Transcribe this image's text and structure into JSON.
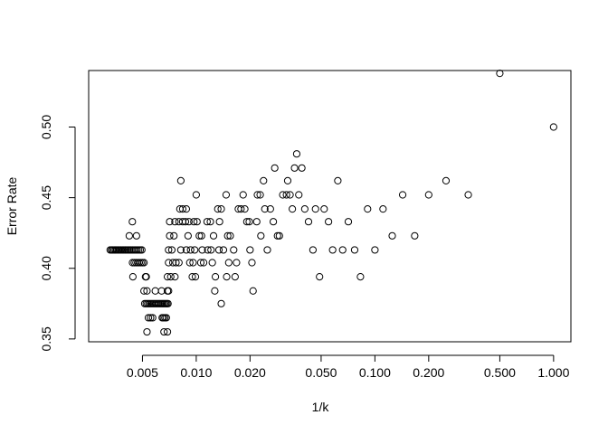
{
  "chart_data": {
    "type": "scatter",
    "title": "",
    "xlabel": "1/k",
    "ylabel": "Error Rate",
    "x_scale": "log",
    "xlim": [
      0.0025,
      1.25
    ],
    "ylim": [
      0.348,
      0.54
    ],
    "grid": false,
    "legend": "none",
    "marker": "open-circle",
    "colors": {
      "marker": "#000000",
      "axis": "#000000",
      "background": "#ffffff"
    },
    "x_ticks": [
      {
        "value": 0.005,
        "label": "0.005"
      },
      {
        "value": 0.01,
        "label": "0.010"
      },
      {
        "value": 0.02,
        "label": "0.020"
      },
      {
        "value": 0.05,
        "label": "0.050"
      },
      {
        "value": 0.1,
        "label": "0.100"
      },
      {
        "value": 0.2,
        "label": "0.200"
      },
      {
        "value": 0.5,
        "label": "0.500"
      },
      {
        "value": 1.0,
        "label": "1.000"
      }
    ],
    "y_ticks": [
      {
        "value": 0.35,
        "label": "0.35"
      },
      {
        "value": 0.4,
        "label": "0.40"
      },
      {
        "value": 0.45,
        "label": "0.45"
      },
      {
        "value": 0.5,
        "label": "0.50"
      }
    ],
    "points": [
      [
        0.0033,
        0.413
      ],
      [
        0.00336,
        0.413
      ],
      [
        0.00341,
        0.413
      ],
      [
        0.00347,
        0.413
      ],
      [
        0.00353,
        0.413
      ],
      [
        0.00359,
        0.413
      ],
      [
        0.00366,
        0.413
      ],
      [
        0.00372,
        0.413
      ],
      [
        0.00379,
        0.413
      ],
      [
        0.00386,
        0.413
      ],
      [
        0.00393,
        0.413
      ],
      [
        0.004,
        0.413
      ],
      [
        0.00407,
        0.413
      ],
      [
        0.00415,
        0.413
      ],
      [
        0.00423,
        0.413
      ],
      [
        0.00431,
        0.413
      ],
      [
        0.00439,
        0.413
      ],
      [
        0.00448,
        0.413
      ],
      [
        0.00457,
        0.413
      ],
      [
        0.00466,
        0.413
      ],
      [
        0.00476,
        0.413
      ],
      [
        0.00486,
        0.413
      ],
      [
        0.00496,
        0.413
      ],
      [
        0.00422,
        0.423
      ],
      [
        0.00439,
        0.433
      ],
      [
        0.00463,
        0.423
      ],
      [
        0.0044,
        0.404
      ],
      [
        0.0045,
        0.404
      ],
      [
        0.0046,
        0.404
      ],
      [
        0.0047,
        0.404
      ],
      [
        0.0048,
        0.404
      ],
      [
        0.0049,
        0.404
      ],
      [
        0.005,
        0.404
      ],
      [
        0.0051,
        0.404
      ],
      [
        0.00442,
        0.394
      ],
      [
        0.0052,
        0.394
      ],
      [
        0.00525,
        0.394
      ],
      [
        0.0051,
        0.384
      ],
      [
        0.0053,
        0.384
      ],
      [
        0.00515,
        0.375
      ],
      [
        0.00525,
        0.375
      ],
      [
        0.00535,
        0.375
      ],
      [
        0.00545,
        0.375
      ],
      [
        0.00555,
        0.375
      ],
      [
        0.00565,
        0.375
      ],
      [
        0.00575,
        0.375
      ],
      [
        0.00585,
        0.375
      ],
      [
        0.00595,
        0.375
      ],
      [
        0.00605,
        0.375
      ],
      [
        0.00615,
        0.375
      ],
      [
        0.00625,
        0.375
      ],
      [
        0.00635,
        0.375
      ],
      [
        0.00645,
        0.375
      ],
      [
        0.00655,
        0.375
      ],
      [
        0.00665,
        0.375
      ],
      [
        0.00675,
        0.375
      ],
      [
        0.00685,
        0.375
      ],
      [
        0.00695,
        0.375
      ],
      [
        0.0054,
        0.365
      ],
      [
        0.00555,
        0.365
      ],
      [
        0.0057,
        0.365
      ],
      [
        0.00645,
        0.365
      ],
      [
        0.00655,
        0.365
      ],
      [
        0.00668,
        0.365
      ],
      [
        0.0068,
        0.365
      ],
      [
        0.0053,
        0.355
      ],
      [
        0.0066,
        0.355
      ],
      [
        0.0069,
        0.355
      ],
      [
        0.0059,
        0.384
      ],
      [
        0.0064,
        0.384
      ],
      [
        0.0069,
        0.384
      ],
      [
        0.007,
        0.384
      ],
      [
        0.0069,
        0.394
      ],
      [
        0.0072,
        0.394
      ],
      [
        0.0076,
        0.394
      ],
      [
        0.007,
        0.404
      ],
      [
        0.0074,
        0.404
      ],
      [
        0.0077,
        0.404
      ],
      [
        0.008,
        0.404
      ],
      [
        0.007,
        0.413
      ],
      [
        0.0073,
        0.413
      ],
      [
        0.0082,
        0.413
      ],
      [
        0.0088,
        0.413
      ],
      [
        0.0093,
        0.413
      ],
      [
        0.0071,
        0.423
      ],
      [
        0.0075,
        0.423
      ],
      [
        0.0071,
        0.433
      ],
      [
        0.0076,
        0.433
      ],
      [
        0.008,
        0.433
      ],
      [
        0.0084,
        0.433
      ],
      [
        0.0087,
        0.433
      ],
      [
        0.0091,
        0.433
      ],
      [
        0.0081,
        0.442
      ],
      [
        0.0084,
        0.442
      ],
      [
        0.0088,
        0.442
      ],
      [
        0.0082,
        0.462
      ],
      [
        0.009,
        0.423
      ],
      [
        0.0092,
        0.404
      ],
      [
        0.0096,
        0.404
      ],
      [
        0.0095,
        0.394
      ],
      [
        0.0099,
        0.394
      ],
      [
        0.0098,
        0.413
      ],
      [
        0.0097,
        0.433
      ],
      [
        0.0101,
        0.433
      ],
      [
        0.01,
        0.452
      ],
      [
        0.0104,
        0.423
      ],
      [
        0.0107,
        0.423
      ],
      [
        0.0106,
        0.404
      ],
      [
        0.011,
        0.404
      ],
      [
        0.0108,
        0.413
      ],
      [
        0.0115,
        0.433
      ],
      [
        0.012,
        0.433
      ],
      [
        0.0116,
        0.413
      ],
      [
        0.0121,
        0.413
      ],
      [
        0.0125,
        0.423
      ],
      [
        0.0123,
        0.404
      ],
      [
        0.0127,
        0.384
      ],
      [
        0.0128,
        0.394
      ],
      [
        0.0132,
        0.442
      ],
      [
        0.0138,
        0.442
      ],
      [
        0.0135,
        0.433
      ],
      [
        0.0134,
        0.413
      ],
      [
        0.0142,
        0.413
      ],
      [
        0.0138,
        0.375
      ],
      [
        0.0147,
        0.452
      ],
      [
        0.015,
        0.423
      ],
      [
        0.0155,
        0.423
      ],
      [
        0.0152,
        0.404
      ],
      [
        0.0148,
        0.394
      ],
      [
        0.0162,
        0.413
      ],
      [
        0.0165,
        0.394
      ],
      [
        0.0168,
        0.404
      ],
      [
        0.0172,
        0.442
      ],
      [
        0.0178,
        0.442
      ],
      [
        0.0183,
        0.452
      ],
      [
        0.0187,
        0.442
      ],
      [
        0.0192,
        0.433
      ],
      [
        0.0198,
        0.433
      ],
      [
        0.02,
        0.413
      ],
      [
        0.0205,
        0.404
      ],
      [
        0.0208,
        0.384
      ],
      [
        0.0218,
        0.433
      ],
      [
        0.022,
        0.452
      ],
      [
        0.0228,
        0.452
      ],
      [
        0.023,
        0.423
      ],
      [
        0.0238,
        0.462
      ],
      [
        0.0242,
        0.442
      ],
      [
        0.025,
        0.413
      ],
      [
        0.026,
        0.442
      ],
      [
        0.027,
        0.433
      ],
      [
        0.0275,
        0.471
      ],
      [
        0.0285,
        0.423
      ],
      [
        0.0292,
        0.423
      ],
      [
        0.0305,
        0.452
      ],
      [
        0.032,
        0.452
      ],
      [
        0.0325,
        0.462
      ],
      [
        0.0335,
        0.452
      ],
      [
        0.0345,
        0.442
      ],
      [
        0.0355,
        0.471
      ],
      [
        0.0365,
        0.481
      ],
      [
        0.0375,
        0.452
      ],
      [
        0.039,
        0.471
      ],
      [
        0.0405,
        0.442
      ],
      [
        0.0425,
        0.433
      ],
      [
        0.045,
        0.413
      ],
      [
        0.0465,
        0.442
      ],
      [
        0.049,
        0.394
      ],
      [
        0.052,
        0.442
      ],
      [
        0.055,
        0.433
      ],
      [
        0.058,
        0.413
      ],
      [
        0.062,
        0.462
      ],
      [
        0.066,
        0.413
      ],
      [
        0.071,
        0.433
      ],
      [
        0.077,
        0.413
      ],
      [
        0.083,
        0.394
      ],
      [
        0.091,
        0.442
      ],
      [
        0.1,
        0.413
      ],
      [
        0.111,
        0.442
      ],
      [
        0.125,
        0.423
      ],
      [
        0.143,
        0.452
      ],
      [
        0.167,
        0.423
      ],
      [
        0.2,
        0.452
      ],
      [
        0.25,
        0.462
      ],
      [
        0.333,
        0.452
      ],
      [
        0.5,
        0.538
      ],
      [
        1.0,
        0.5
      ]
    ]
  }
}
